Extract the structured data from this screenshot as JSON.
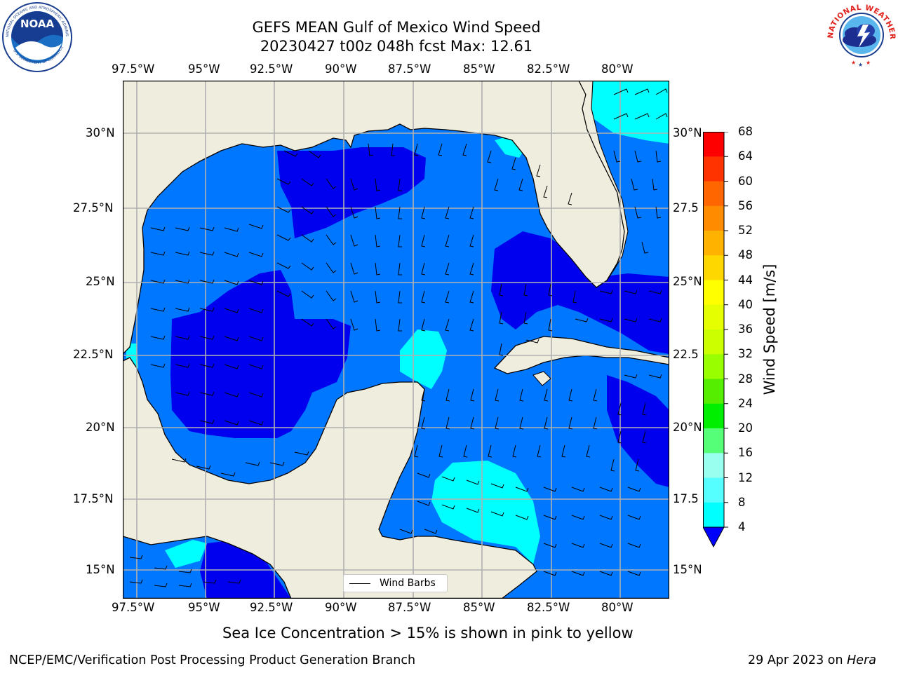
{
  "title_line1": "GEFS MEAN Gulf of Mexico Wind Speed",
  "title_line2": "20230427 t00z 048h fcst   Max: 12.61",
  "map": {
    "lon_labels": [
      "97.5°W",
      "95°W",
      "92.5°W",
      "90°W",
      "87.5°W",
      "85°W",
      "82.5°W",
      "80°W"
    ],
    "lat_labels_left": [
      "30°N",
      "27.5°N",
      "25°N",
      "22.5°N",
      "20°N",
      "17.5°N",
      "15°N"
    ],
    "lat_labels_right": [
      "30°N",
      "27.5",
      "25°N",
      "22.5",
      "20°N",
      "17.5",
      "15°N"
    ],
    "legend_label": "Wind Barbs",
    "land_color": "#efedde",
    "grid_color": "#b0b0b0"
  },
  "colorbar": {
    "label": "Wind Speed [m/s]",
    "ticks": [
      "68",
      "64",
      "60",
      "56",
      "52",
      "48",
      "44",
      "40",
      "36",
      "32",
      "28",
      "24",
      "20",
      "16",
      "12",
      "8",
      "4"
    ],
    "colors": [
      "#ff0000",
      "#ff3300",
      "#ff6600",
      "#ff8c00",
      "#ffb300",
      "#ffd700",
      "#ffff00",
      "#e6ff00",
      "#ccff00",
      "#99ff00",
      "#55ee00",
      "#00ee00",
      "#55ff77",
      "#99ffee",
      "#55ffff",
      "#00ffff",
      "#0077ff"
    ],
    "extend_color": "#0000ff"
  },
  "caption": "Sea Ice Concentration > 15% is shown in pink to yellow",
  "footer_left": "NCEP/EMC/Verification Post Processing Product Generation Branch",
  "footer_right_prefix": "29 Apr 2023 on ",
  "footer_right_host": "Hera",
  "logos": {
    "left": "NOAA",
    "right": "NATIONAL WEATHER SERVICE"
  }
}
